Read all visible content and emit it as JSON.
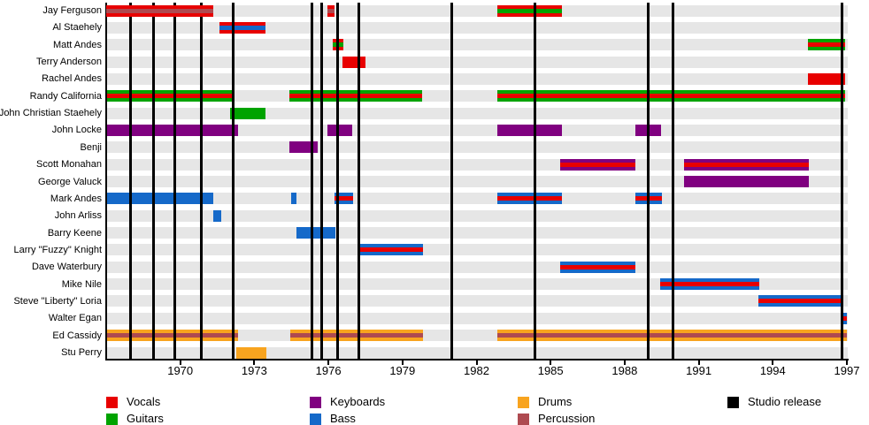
{
  "chart_data": {
    "type": "timeline",
    "x_axis": {
      "min": 1967,
      "max": 1997,
      "tick_years": [
        1970,
        1973,
        1976,
        1979,
        1982,
        1985,
        1988,
        1991,
        1994,
        1997
      ]
    },
    "roles": {
      "vocals": "#e80000",
      "guitars": "#00a300",
      "keyboards": "#800080",
      "bass": "#1569c9",
      "drums": "#f8a41f",
      "percussion": "#ae4a50",
      "studio_release": "#000000"
    },
    "legend": [
      {
        "role": "vocals",
        "label": "Vocals"
      },
      {
        "role": "guitars",
        "label": "Guitars"
      },
      {
        "role": "keyboards",
        "label": "Keyboards"
      },
      {
        "role": "bass",
        "label": "Bass"
      },
      {
        "role": "drums",
        "label": "Drums"
      },
      {
        "role": "percussion",
        "label": "Percussion"
      },
      {
        "role": "studio_release",
        "label": "Studio release"
      }
    ],
    "row_band_color": "#e6e6e6",
    "members": [
      {
        "name": "Jay Ferguson",
        "bars": [
          {
            "start": 1967.0,
            "end": 1971.34,
            "roles": [
              "vocals",
              "percussion"
            ],
            "over_lines": true
          },
          {
            "start": 1975.96,
            "end": 1976.25,
            "roles": [
              "vocals",
              "percussion"
            ]
          },
          {
            "start": 1982.84,
            "end": 1985.46,
            "roles": [
              "vocals",
              "guitars"
            ]
          }
        ]
      },
      {
        "name": "Al Staehely",
        "bars": [
          {
            "start": 1971.59,
            "end": 1973.45,
            "roles": [
              "vocals",
              "bass"
            ]
          }
        ]
      },
      {
        "name": "Matt Andes",
        "bars": [
          {
            "start": 1976.18,
            "end": 1976.61,
            "roles": [
              "vocals",
              "guitars"
            ]
          },
          {
            "start": 1995.42,
            "end": 1996.93,
            "roles": [
              "guitars",
              "vocals"
            ]
          }
        ]
      },
      {
        "name": "Terry Anderson",
        "bars": [
          {
            "start": 1976.57,
            "end": 1977.5,
            "roles": [
              "vocals"
            ]
          }
        ]
      },
      {
        "name": "Rachel Andes",
        "bars": [
          {
            "start": 1995.42,
            "end": 1996.93,
            "roles": [
              "vocals"
            ]
          }
        ]
      },
      {
        "name": "Randy California",
        "bars": [
          {
            "start": 1967.0,
            "end": 1972.09,
            "roles": [
              "guitars",
              "vocals"
            ]
          },
          {
            "start": 1974.42,
            "end": 1979.8,
            "roles": [
              "guitars",
              "vocals"
            ]
          },
          {
            "start": 1982.84,
            "end": 1996.93,
            "roles": [
              "guitars",
              "vocals"
            ]
          }
        ]
      },
      {
        "name": "John Christian Staehely",
        "bars": [
          {
            "start": 1972.02,
            "end": 1973.45,
            "roles": [
              "guitars"
            ]
          }
        ]
      },
      {
        "name": "John Locke",
        "bars": [
          {
            "start": 1967.0,
            "end": 1972.34,
            "roles": [
              "keyboards"
            ]
          },
          {
            "start": 1975.96,
            "end": 1976.96,
            "roles": [
              "keyboards"
            ]
          },
          {
            "start": 1982.84,
            "end": 1985.46,
            "roles": [
              "keyboards"
            ]
          },
          {
            "start": 1988.43,
            "end": 1989.47,
            "roles": [
              "keyboards"
            ]
          }
        ]
      },
      {
        "name": "Benji",
        "bars": [
          {
            "start": 1974.42,
            "end": 1975.57,
            "roles": [
              "keyboards"
            ]
          }
        ]
      },
      {
        "name": "Scott Monahan",
        "bars": [
          {
            "start": 1985.39,
            "end": 1988.43,
            "roles": [
              "keyboards",
              "vocals"
            ]
          },
          {
            "start": 1990.41,
            "end": 1995.46,
            "roles": [
              "keyboards",
              "vocals"
            ]
          }
        ]
      },
      {
        "name": "George Valuck",
        "bars": [
          {
            "start": 1990.41,
            "end": 1995.46,
            "roles": [
              "keyboards"
            ]
          }
        ]
      },
      {
        "name": "Mark Andes",
        "bars": [
          {
            "start": 1967.0,
            "end": 1971.34,
            "roles": [
              "bass"
            ]
          },
          {
            "start": 1974.49,
            "end": 1974.71,
            "roles": [
              "bass"
            ]
          },
          {
            "start": 1976.25,
            "end": 1977.0,
            "roles": [
              "bass",
              "vocals"
            ]
          },
          {
            "start": 1982.84,
            "end": 1985.46,
            "roles": [
              "bass",
              "vocals"
            ]
          },
          {
            "start": 1988.43,
            "end": 1989.51,
            "roles": [
              "bass",
              "vocals"
            ]
          }
        ]
      },
      {
        "name": "John Arliss",
        "bars": [
          {
            "start": 1971.34,
            "end": 1971.66,
            "roles": [
              "bass"
            ]
          }
        ]
      },
      {
        "name": "Barry Keene",
        "bars": [
          {
            "start": 1974.71,
            "end": 1976.28,
            "roles": [
              "bass"
            ]
          }
        ]
      },
      {
        "name": "Larry \"Fuzzy\" Knight",
        "bars": [
          {
            "start": 1977.25,
            "end": 1979.83,
            "roles": [
              "bass",
              "vocals"
            ]
          }
        ]
      },
      {
        "name": "Dave Waterbury",
        "bars": [
          {
            "start": 1985.39,
            "end": 1988.43,
            "roles": [
              "bass",
              "vocals"
            ]
          }
        ]
      },
      {
        "name": "Mike Nile",
        "bars": [
          {
            "start": 1989.44,
            "end": 1993.45,
            "roles": [
              "bass",
              "vocals"
            ]
          }
        ]
      },
      {
        "name": "Steve \"Liberty\" Loria",
        "bars": [
          {
            "start": 1993.42,
            "end": 1996.82,
            "roles": [
              "bass",
              "vocals"
            ]
          }
        ]
      },
      {
        "name": "Walter Egan",
        "bars": [
          {
            "start": 1996.75,
            "end": 1997.0,
            "roles": [
              "bass",
              "vocals"
            ]
          }
        ]
      },
      {
        "name": "Ed Cassidy",
        "bars": [
          {
            "start": 1967.0,
            "end": 1972.34,
            "roles": [
              "drums",
              "percussion"
            ]
          },
          {
            "start": 1974.45,
            "end": 1979.83,
            "roles": [
              "drums",
              "percussion"
            ]
          },
          {
            "start": 1982.84,
            "end": 1997.0,
            "roles": [
              "drums",
              "percussion"
            ]
          }
        ]
      },
      {
        "name": "Stu Perry",
        "bars": [
          {
            "start": 1972.27,
            "end": 1973.49,
            "roles": [
              "drums"
            ]
          }
        ]
      }
    ],
    "studio_releases": [
      1968.0,
      1968.9,
      1969.76,
      1970.84,
      1972.16,
      1975.32,
      1975.71,
      1976.39,
      1977.25,
      1980.98,
      1984.35,
      1988.94,
      1989.94,
      1996.82
    ]
  }
}
